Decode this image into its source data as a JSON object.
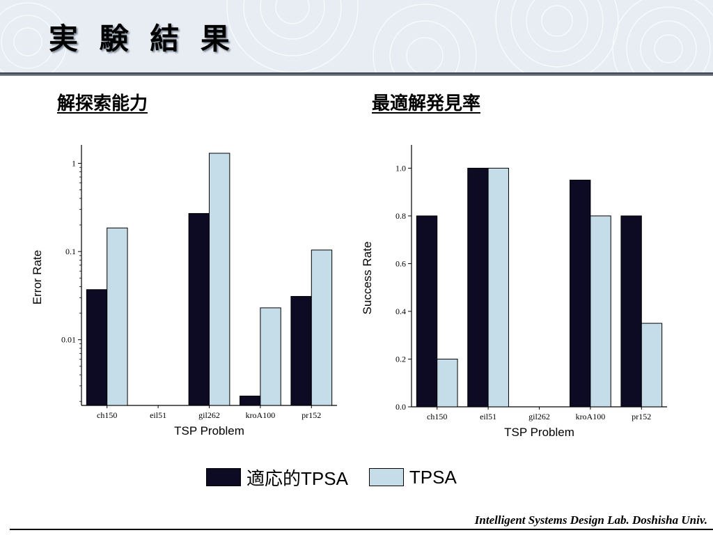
{
  "slide": {
    "title": "実 験 結 果",
    "footer": "Intelligent Systems Design Lab. Doshisha Univ."
  },
  "colors": {
    "adaptive": "#0d0b24",
    "tpsa": "#c4dde9",
    "header_bg": "#e8edf3"
  },
  "sections": {
    "left_title": "解探索能力",
    "right_title": "最適解発見率"
  },
  "legend": [
    {
      "label": "適応的TPSA",
      "color": "#0d0b24"
    },
    {
      "label": "TPSA",
      "color": "#c4dde9"
    }
  ],
  "chart_data": [
    {
      "type": "bar",
      "scale": "log",
      "categories": [
        "ch150",
        "eil51",
        "gil262",
        "kroA100",
        "pr152"
      ],
      "series": [
        {
          "name": "適応的TPSA",
          "values": [
            0.037,
            null,
            0.27,
            0.0023,
            0.031
          ]
        },
        {
          "name": "TPSA",
          "values": [
            0.185,
            null,
            1.3,
            0.023,
            0.104
          ]
        }
      ],
      "yticks": [
        1,
        0.1,
        0.01
      ],
      "ytick_labels": [
        "1",
        "0.1",
        "0.01"
      ],
      "xlabel": "TSP Problem",
      "ylabel": "Error Rate",
      "ylim": [
        0.0018,
        1.45
      ]
    },
    {
      "type": "bar",
      "scale": "linear",
      "categories": [
        "ch150",
        "eil51",
        "gil262",
        "kroA100",
        "pr152"
      ],
      "series": [
        {
          "name": "適応的TPSA",
          "values": [
            0.8,
            1.0,
            0.0,
            0.95,
            0.8
          ]
        },
        {
          "name": "TPSA",
          "values": [
            0.2,
            1.0,
            0.0,
            0.8,
            0.35
          ]
        }
      ],
      "yticks": [
        0.0,
        0.2,
        0.4,
        0.6,
        0.8,
        1.0
      ],
      "ytick_labels": [
        "0.0",
        "0.2",
        "0.4",
        "0.6",
        "0.8",
        "1.0"
      ],
      "xlabel": "TSP Problem",
      "ylabel": "Success Rate",
      "ylim": [
        0,
        1.08
      ]
    }
  ]
}
